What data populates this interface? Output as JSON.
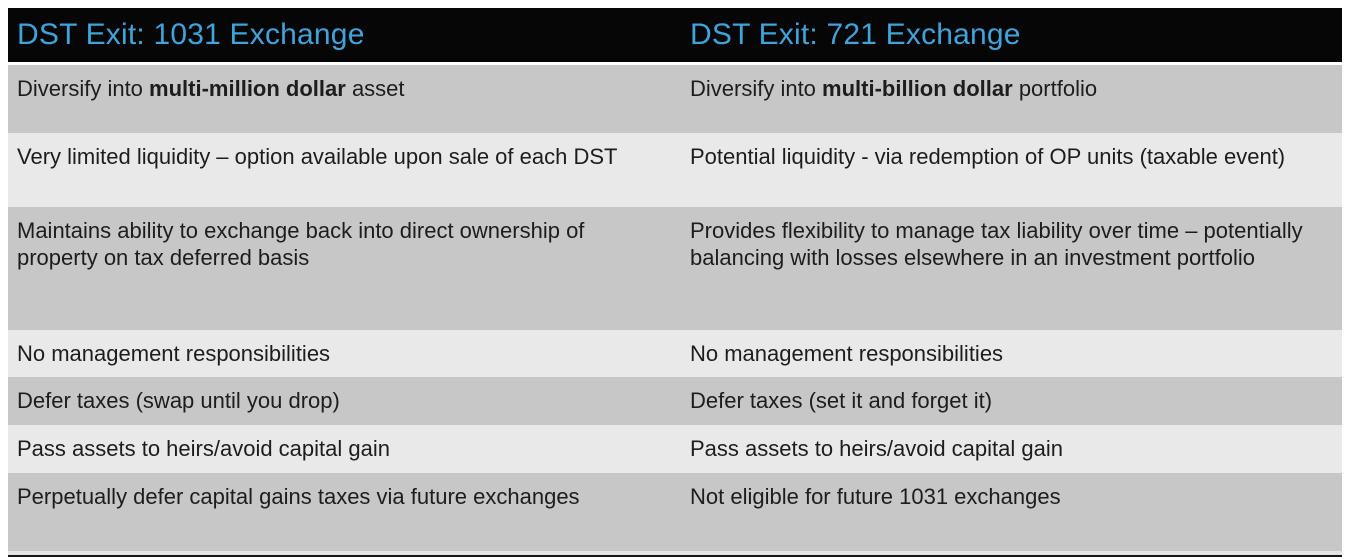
{
  "table": {
    "colors": {
      "header_background": "#060606",
      "header_text": "#3fa3dc",
      "row_dark": "#c7c7c7",
      "row_light": "#e9e9e9",
      "body_text": "#1d1d1d"
    },
    "headers": [
      {
        "label": "DST Exit: 1031 Exchange"
      },
      {
        "label": "DST Exit: 721 Exchange"
      }
    ],
    "rows": [
      {
        "left": {
          "pre": "Diversify into ",
          "bold": "multi-million dollar",
          "post": " asset"
        },
        "right": {
          "pre": "Diversify into ",
          "bold": "multi-billion dollar",
          "post": " portfolio"
        }
      },
      {
        "left": {
          "pre": "Very limited liquidity – option available upon sale of each DST"
        },
        "right": {
          "pre": "Potential liquidity - via redemption of OP units (taxable event)"
        }
      },
      {
        "left": {
          "pre": "Maintains ability to exchange back into direct ownership of property on tax deferred basis"
        },
        "right": {
          "pre": "Provides flexibility to manage tax liability over time – potentially balancing with losses elsewhere in an investment portfolio"
        }
      },
      {
        "left": {
          "pre": "No management responsibilities"
        },
        "right": {
          "pre": "No management responsibilities"
        }
      },
      {
        "left": {
          "pre": "Defer taxes (swap until you drop)"
        },
        "right": {
          "pre": "Defer taxes (set it and forget it)"
        }
      },
      {
        "left": {
          "pre": "Pass assets to heirs/avoid capital gain"
        },
        "right": {
          "pre": "Pass assets to heirs/avoid capital gain"
        }
      },
      {
        "left": {
          "pre": "Perpetually defer capital gains taxes via future exchanges"
        },
        "right": {
          "pre": "Not eligible for future 1031 exchanges"
        }
      }
    ]
  }
}
